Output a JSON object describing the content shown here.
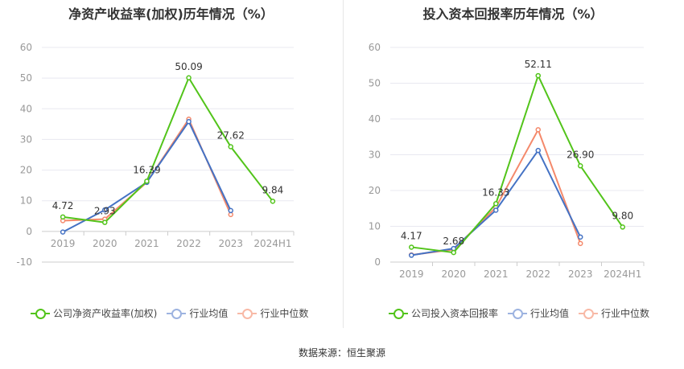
{
  "colors": {
    "company": "#52c41a",
    "industry_avg": "#4472c4",
    "industry_median": "#f4896b",
    "grid": "#e8e8f0",
    "axis_text": "#999999"
  },
  "source_text": "数据来源：恒生聚源",
  "chart_data": [
    {
      "type": "line",
      "title": "净资产收益率(加权)历年情况（%）",
      "categories": [
        "2019",
        "2020",
        "2021",
        "2022",
        "2023",
        "2024H1"
      ],
      "ylim": [
        -10,
        60
      ],
      "yticks": [
        "-10",
        "0",
        "10",
        "20",
        "30",
        "40",
        "50",
        "60"
      ],
      "grid": true,
      "legend_position": "bottom-left",
      "series": [
        {
          "name": "公司净资产收益率(加权)",
          "values": [
            4.72,
            2.93,
            16.39,
            50.09,
            27.62,
            9.84
          ],
          "labels": [
            "4.72",
            "2.93",
            "16.39",
            "50.09",
            "27.62",
            "9.84"
          ]
        },
        {
          "name": "行业均值",
          "values": [
            -0.2,
            7.0,
            16.0,
            35.8,
            6.8,
            null
          ]
        },
        {
          "name": "行业中位数",
          "values": [
            3.5,
            4.0,
            16.0,
            36.6,
            5.5,
            null
          ]
        }
      ]
    },
    {
      "type": "line",
      "title": "投入资本回报率历年情况（%）",
      "categories": [
        "2019",
        "2020",
        "2021",
        "2022",
        "2023",
        "2024H1"
      ],
      "ylim": [
        0,
        60
      ],
      "yticks": [
        "0",
        "10",
        "20",
        "30",
        "40",
        "50",
        "60"
      ],
      "grid": true,
      "legend_position": "bottom-left",
      "series": [
        {
          "name": "公司投入资本回报率",
          "values": [
            4.17,
            2.68,
            16.33,
            52.11,
            26.9,
            9.8
          ],
          "labels": [
            "4.17",
            "2.68",
            "16.33",
            "52.11",
            "26.90",
            "9.80"
          ]
        },
        {
          "name": "行业均值",
          "values": [
            1.9,
            3.8,
            14.5,
            31.2,
            7.0,
            null
          ]
        },
        {
          "name": "行业中位数",
          "values": [
            2.0,
            3.5,
            15.3,
            37.0,
            5.2,
            null
          ]
        }
      ]
    }
  ]
}
